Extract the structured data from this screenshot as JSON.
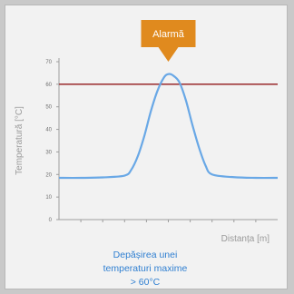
{
  "colors": {
    "curve": "#69a8e6",
    "threshold": "#a0383b",
    "axis": "#9d9d9d",
    "callout": "#e08a1e"
  },
  "chart_data": {
    "type": "line",
    "title": "",
    "xlabel": "Distanța [m]",
    "ylabel": "Temperatură [°C]",
    "ylim": [
      0,
      70
    ],
    "yticks": [
      0,
      10,
      20,
      30,
      40,
      50,
      60,
      70
    ],
    "xlim": [
      0,
      10
    ],
    "grid": false,
    "series": [
      {
        "x": [
          0.0,
          1.0,
          2.0,
          3.0,
          3.3,
          3.6,
          3.9,
          4.2,
          4.5,
          4.8,
          5.0,
          5.2,
          5.5,
          5.8,
          6.1,
          6.4,
          6.7,
          7.0,
          8.0,
          9.0,
          10.0
        ],
        "values": [
          18.5,
          18.5,
          18.7,
          19.5,
          22,
          28,
          37,
          48,
          57,
          63,
          64.5,
          64,
          61,
          53,
          42,
          32,
          24,
          20,
          18.8,
          18.5,
          18.5
        ]
      }
    ],
    "threshold": {
      "value": 60
    },
    "annotation": {
      "label": "Alarmă",
      "x": 5.0
    }
  },
  "caption": {
    "line1": "Depășirea unei",
    "line2": "temperaturi maxime",
    "line3": "> 60°C"
  }
}
